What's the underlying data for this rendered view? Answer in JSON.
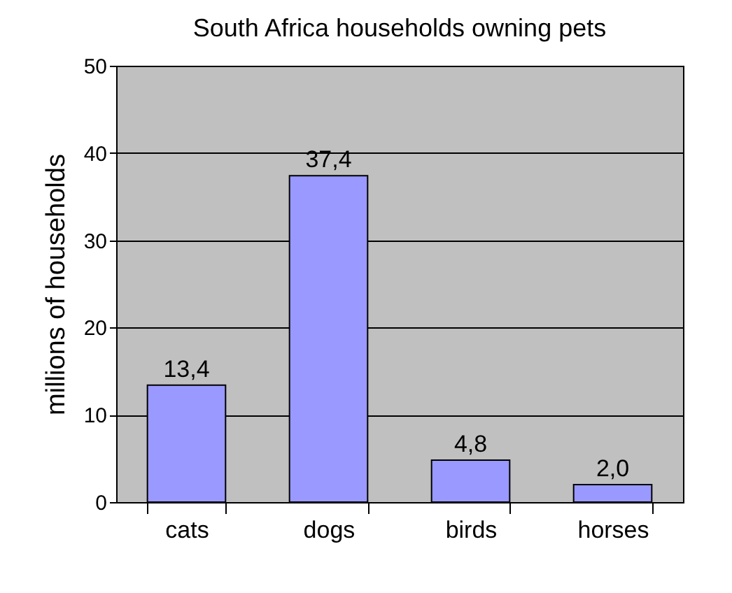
{
  "chart_data": {
    "type": "bar",
    "title": "South Africa households owning pets",
    "ylabel": "millions of households",
    "categories": [
      "cats",
      "dogs",
      "birds",
      "horses"
    ],
    "values": [
      13.4,
      37.4,
      4.8,
      2.0
    ],
    "value_labels": [
      "13,4",
      "37,4",
      "4,8",
      "2,0"
    ],
    "color": "#9999ff",
    "ylim": [
      0,
      50
    ],
    "yticks": [
      0,
      10,
      20,
      30,
      40,
      50
    ],
    "grid": "y"
  }
}
